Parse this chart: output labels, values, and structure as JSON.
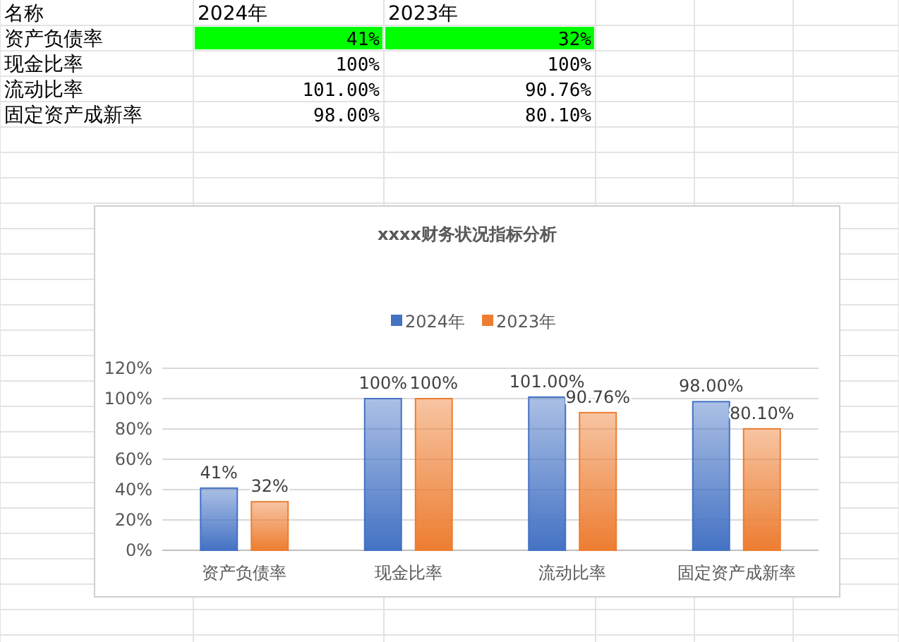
{
  "chart_data": {
    "type": "bar",
    "title": "xxxx财务状况指标分析",
    "categories": [
      "资产负债率",
      "现金比率",
      "流动比率",
      "固定资产成新率"
    ],
    "series": [
      {
        "name": "2024年",
        "color": "#4472c4",
        "values": [
          41,
          100,
          101,
          98
        ],
        "value_labels": [
          "41%",
          "100%",
          "101.00%",
          "98.00%"
        ]
      },
      {
        "name": "2023年",
        "color": "#ed7d31",
        "values": [
          32,
          100,
          90.76,
          80.1
        ],
        "value_labels": [
          "32%",
          "100%",
          "90.76%",
          "80.10%"
        ]
      }
    ],
    "ylim": [
      0,
      120
    ],
    "yticks": [
      {
        "value": 0,
        "label": "0%"
      },
      {
        "value": 20,
        "label": "20%"
      },
      {
        "value": 40,
        "label": "40%"
      },
      {
        "value": 60,
        "label": "60%"
      },
      {
        "value": 80,
        "label": "80%"
      },
      {
        "value": 100,
        "label": "100%"
      },
      {
        "value": 120,
        "label": "120%"
      }
    ],
    "grid": "y",
    "legend": "top",
    "annotations": [
      "名称"
    ]
  }
}
